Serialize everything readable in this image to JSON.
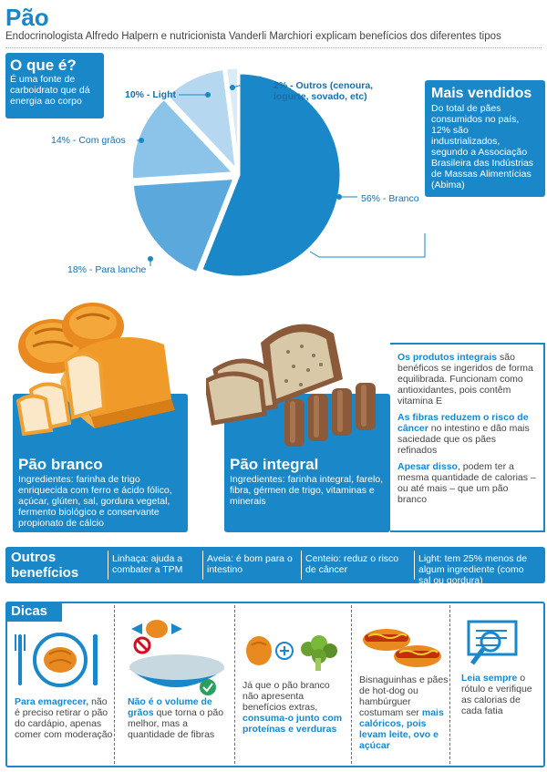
{
  "header": {
    "title": "Pão",
    "subtitle": "Endocrinologista Alfredo Halpern e nutricionista Vanderli Marchiori explicam benefícios dos diferentes tipos"
  },
  "what_is": {
    "title": "O que é?",
    "text": "É uma fonte de carboidrato que dá energia ao corpo"
  },
  "best_sellers": {
    "title": "Mais vendidos",
    "text": "Do total de pães consumidos no país, 12% são industrializados, segundo a Associação Brasileira das Indústrias de Massas Alimentícias (Abima)"
  },
  "chart_data": {
    "type": "pie",
    "slices": [
      {
        "label": "56% - Branco",
        "value": 56,
        "color": "#1a87c9"
      },
      {
        "label": "18% - Para lanche",
        "value": 18,
        "color": "#5aa8dc"
      },
      {
        "label": "14% - Com grãos",
        "value": 14,
        "color": "#8cc3e8"
      },
      {
        "label": "10% - Light",
        "value": 10,
        "color": "#b5d8f0"
      },
      {
        "label": "2% - Outros (cenoura, iogurte, sovado, etc)",
        "value": 2,
        "color": "#d9ebf7"
      }
    ]
  },
  "white_bread": {
    "title": "Pão branco",
    "text": "Ingredientes: farinha de trigo enriquecida com ferro e ácido fólico, açúcar, glúten, sal, gordura vegetal, fermento biológico e conservante propionato de cálcio"
  },
  "whole_bread": {
    "title": "Pão integral",
    "text": "Ingredientes: farinha integral, farelo, fibra, gérmen de trigo, vitaminas e minerais",
    "note1_bold": "Os produtos integrais",
    "note1": " são benéficos se ingeridos de forma equilibrada. Funcionam como antioxidantes, pois contêm vitamina E",
    "note2_bold": "As fibras reduzem o risco de câncer",
    "note2": " no intestino e dão mais saciedade que os pães refinados",
    "note3_bold": "Apesar disso",
    "note3": ", podem ter a mesma quantidade de calorias – ou até mais – que um pão branco"
  },
  "other_benefits": {
    "title": "Outros benefícios",
    "items": [
      "Linhaça: ajuda a combater a TPM",
      "Aveia: é bom para o intestino",
      "Centeio: reduz o risco de câncer",
      "Light: tem 25% menos de algum ingrediente (como sal ou gordura)"
    ]
  },
  "tips": {
    "title": "Dicas",
    "t1_bold": "Para emagrecer,",
    "t1": " não é preciso retirar o pão do cardápio, apenas comer com moderação",
    "t2_bold": "Não é o volume de grãos",
    "t2": " que torna o pão melhor, mas a quantidade de fibras",
    "t3": "Já que o pão branco não apresenta benefícios extras, ",
    "t3_bold": "consuma-o junto com proteínas e verduras",
    "t4": "Bisnaguinhas e pães de hot-dog ou hambúrguer costumam ser ",
    "t4_bold": "mais calóricos, pois levam leite, ovo e açúcar",
    "t5_bold": "Leia sempre",
    "t5": " o rótulo e verifique as calorias de cada fatia"
  },
  "colors": {
    "accent": "#1a87c9",
    "bread_crust": "#f0a030",
    "bread_crumb": "#fbe8c8",
    "whole_crust": "#8a5a3a",
    "whole_crumb": "#d8c8a8"
  }
}
